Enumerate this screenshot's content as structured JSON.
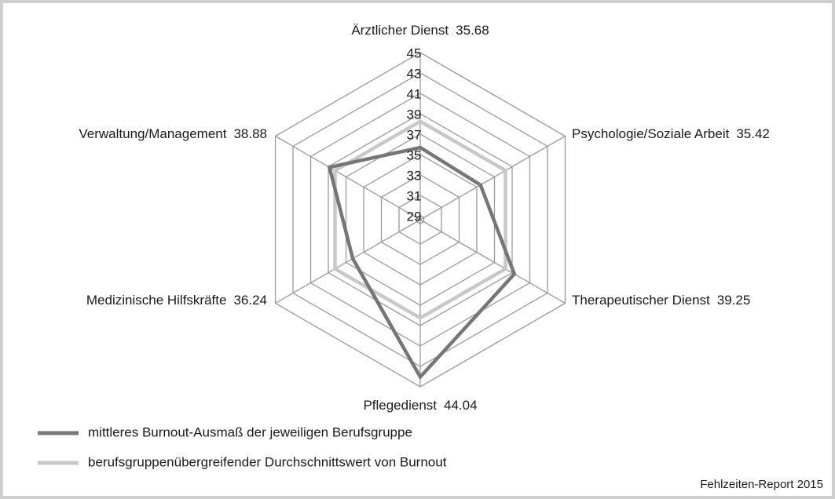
{
  "chart_data": {
    "type": "radar",
    "categories": [
      "Ärztlicher Dienst",
      "Psychologie/Soziale Arbeit",
      "Therapeutischer Dienst",
      "Pflegedienst",
      "Medizinische Hilfskräfte",
      "Verwaltung/Management"
    ],
    "series": [
      {
        "name": "mittleres Burnout-Ausmaß der jeweiligen Berufsgruppe",
        "color": "#767676",
        "values": [
          35.68,
          35.42,
          39.25,
          44.04,
          36.24,
          38.88
        ]
      },
      {
        "name": "berufsgruppenübergreifender Durchschnittswert von Burnout",
        "color": "#c8c8c8",
        "values": [
          38.25,
          38.25,
          38.25,
          38.25,
          38.25,
          38.25
        ]
      }
    ],
    "ylim": [
      28.6,
      45
    ],
    "yticks": [
      29,
      31,
      33,
      35,
      37,
      39,
      41,
      43,
      45
    ],
    "grid": true,
    "source": "Fehlzeiten-Report 2015"
  }
}
